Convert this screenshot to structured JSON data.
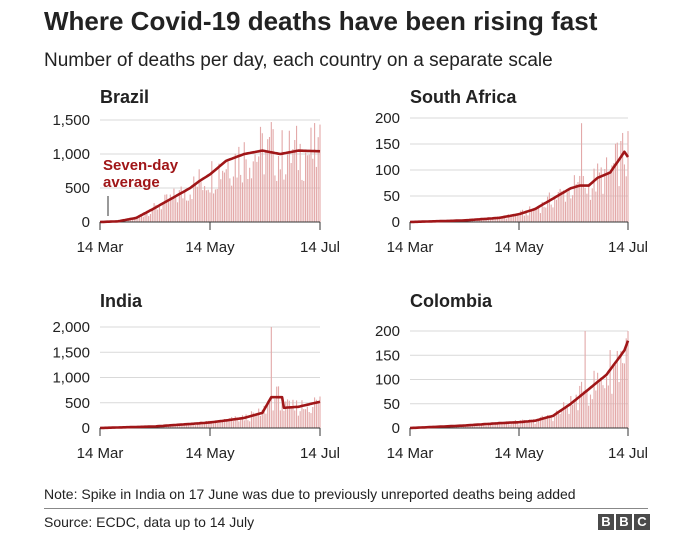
{
  "title": "Where Covid-19 deaths have been rising fast",
  "subtitle": "Number of deaths per day, each country on a separate scale",
  "note": "Note: Spike in India on 17 June was due to previously unreported deaths being added",
  "source": "Source: ECDC, data up to 14 July",
  "logo": [
    "B",
    "B",
    "C"
  ],
  "colors": {
    "bar": "#e3a9a9",
    "line": "#a01618",
    "grid": "#d9d9d9",
    "text": "#222222"
  },
  "chart_data": [
    {
      "type": "bar",
      "title": "Brazil",
      "x_ticks": [
        "14 Mar",
        "14 May",
        "14 Jul"
      ],
      "ylim": [
        0,
        1500
      ],
      "y_ticks": [
        0,
        500,
        1000,
        1500
      ],
      "y_tick_labels": [
        "0",
        "500",
        "1,000",
        "1,500"
      ],
      "series_daily_approx": [
        {
          "day": 0,
          "value": 0
        },
        {
          "day": 10,
          "value": 10
        },
        {
          "day": 20,
          "value": 60
        },
        {
          "day": 30,
          "value": 200
        },
        {
          "day": 40,
          "value": 350
        },
        {
          "day": 50,
          "value": 500
        },
        {
          "day": 55,
          "value": 600
        },
        {
          "day": 61,
          "value": 700
        },
        {
          "day": 70,
          "value": 900
        },
        {
          "day": 80,
          "value": 1000
        },
        {
          "day": 90,
          "value": 1050
        },
        {
          "day": 100,
          "value": 1000
        },
        {
          "day": 110,
          "value": 1050
        },
        {
          "day": 122,
          "value": 1040
        }
      ],
      "peak_daily": 1470,
      "annotation": [
        "Seven-day",
        "average"
      ]
    },
    {
      "type": "bar",
      "title": "South Africa",
      "x_ticks": [
        "14 Mar",
        "14 May",
        "14 Jul"
      ],
      "ylim": [
        0,
        200
      ],
      "y_ticks": [
        0,
        50,
        100,
        150,
        200
      ],
      "y_tick_labels": [
        "0",
        "50",
        "100",
        "150",
        "200"
      ],
      "series_daily_approx": [
        {
          "day": 0,
          "value": 0
        },
        {
          "day": 30,
          "value": 3
        },
        {
          "day": 50,
          "value": 8
        },
        {
          "day": 61,
          "value": 15
        },
        {
          "day": 70,
          "value": 25
        },
        {
          "day": 80,
          "value": 45
        },
        {
          "day": 90,
          "value": 65
        },
        {
          "day": 95,
          "value": 70
        },
        {
          "day": 100,
          "value": 70
        },
        {
          "day": 105,
          "value": 85
        },
        {
          "day": 112,
          "value": 95
        },
        {
          "day": 116,
          "value": 115
        },
        {
          "day": 120,
          "value": 135
        },
        {
          "day": 122,
          "value": 125
        }
      ],
      "peak_daily": 190
    },
    {
      "type": "bar",
      "title": "India",
      "x_ticks": [
        "14 Mar",
        "14 May",
        "14 Jul"
      ],
      "ylim": [
        0,
        2000
      ],
      "y_ticks": [
        0,
        500,
        1000,
        1500,
        2000
      ],
      "y_tick_labels": [
        "0",
        "500",
        "1,000",
        "1,500",
        "2,000"
      ],
      "series_daily_approx": [
        {
          "day": 0,
          "value": 0
        },
        {
          "day": 30,
          "value": 30
        },
        {
          "day": 50,
          "value": 80
        },
        {
          "day": 61,
          "value": 110
        },
        {
          "day": 70,
          "value": 150
        },
        {
          "day": 80,
          "value": 200
        },
        {
          "day": 90,
          "value": 300
        },
        {
          "day": 95,
          "value": 610
        },
        {
          "day": 101,
          "value": 610
        },
        {
          "day": 102,
          "value": 400
        },
        {
          "day": 110,
          "value": 420
        },
        {
          "day": 122,
          "value": 520
        }
      ],
      "spike": {
        "date": "17 June",
        "day": 95,
        "value": 2000
      }
    },
    {
      "type": "bar",
      "title": "Colombia",
      "x_ticks": [
        "14 Mar",
        "14 May",
        "14 Jul"
      ],
      "ylim": [
        0,
        200
      ],
      "y_ticks": [
        0,
        50,
        100,
        150,
        200
      ],
      "y_tick_labels": [
        "0",
        "50",
        "100",
        "150",
        "200"
      ],
      "series_daily_approx": [
        {
          "day": 0,
          "value": 0
        },
        {
          "day": 30,
          "value": 5
        },
        {
          "day": 50,
          "value": 10
        },
        {
          "day": 61,
          "value": 12
        },
        {
          "day": 70,
          "value": 15
        },
        {
          "day": 80,
          "value": 25
        },
        {
          "day": 90,
          "value": 50
        },
        {
          "day": 100,
          "value": 80
        },
        {
          "day": 110,
          "value": 110
        },
        {
          "day": 115,
          "value": 135
        },
        {
          "day": 120,
          "value": 160
        },
        {
          "day": 122,
          "value": 180
        }
      ],
      "peak_daily": 205
    }
  ]
}
